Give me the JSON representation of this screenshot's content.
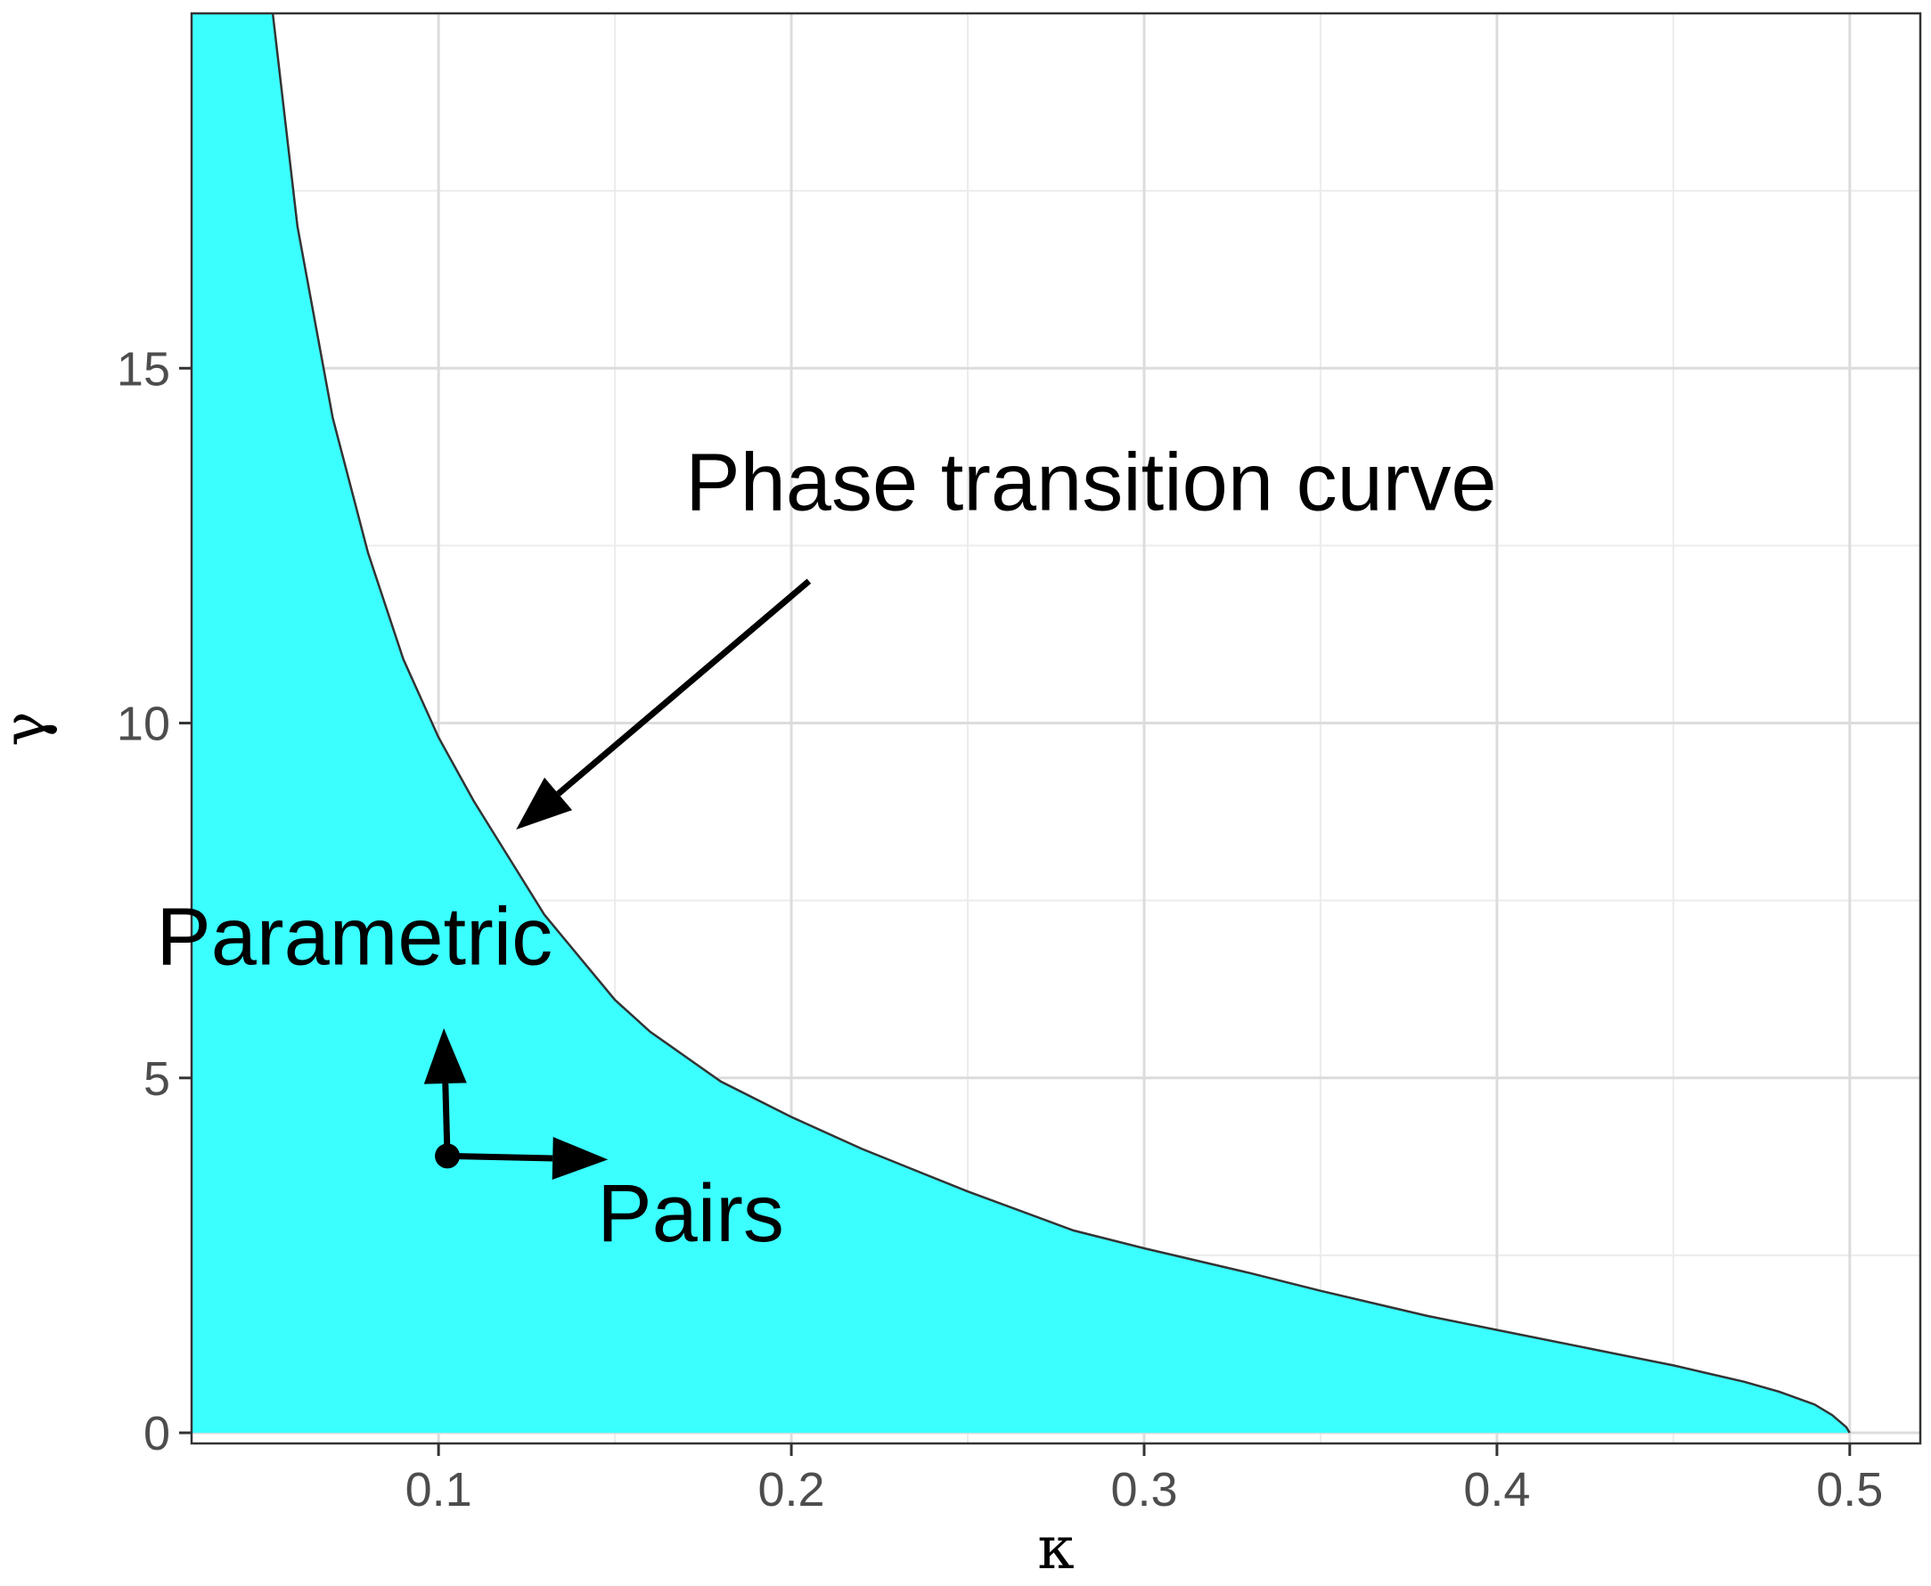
{
  "chart_data": {
    "type": "area",
    "title": "",
    "xlabel": "κ",
    "ylabel": "γ",
    "xlim": [
      0.03,
      0.52
    ],
    "ylim": [
      -0.15,
      20
    ],
    "x_ticks": [
      {
        "value": 0.1,
        "label": "0.1"
      },
      {
        "value": 0.2,
        "label": "0.2"
      },
      {
        "value": 0.3,
        "label": "0.3"
      },
      {
        "value": 0.4,
        "label": "0.4"
      },
      {
        "value": 0.5,
        "label": "0.5"
      }
    ],
    "y_ticks": [
      {
        "value": 0,
        "label": "0"
      },
      {
        "value": 5,
        "label": "5"
      },
      {
        "value": 10,
        "label": "10"
      },
      {
        "value": 15,
        "label": "15"
      }
    ],
    "grid": true,
    "fill_color": "#3bffff",
    "line_color": "#333333",
    "series": [
      {
        "x": [
          0.053,
          0.06,
          0.07,
          0.08,
          0.09,
          0.1,
          0.11,
          0.12,
          0.13,
          0.14,
          0.15,
          0.16,
          0.18,
          0.2,
          0.22,
          0.25,
          0.28,
          0.3,
          0.33,
          0.35,
          0.38,
          0.4,
          0.43,
          0.45,
          0.47,
          0.48,
          0.49,
          0.495,
          0.499,
          0.5
        ],
        "y": [
          20.0,
          17.0,
          14.3,
          12.4,
          10.9,
          9.8,
          8.9,
          8.1,
          7.3,
          6.7,
          6.1,
          5.65,
          4.95,
          4.45,
          4.0,
          3.4,
          2.85,
          2.6,
          2.25,
          2.0,
          1.65,
          1.45,
          1.15,
          0.95,
          0.72,
          0.58,
          0.4,
          0.25,
          0.08,
          0.0
        ]
      }
    ],
    "annotations": [
      {
        "id": "phase",
        "text": "Phase transition curve",
        "x": 0.17,
        "y": 13.0
      },
      {
        "id": "parametric",
        "text": "Parametric",
        "x": 0.02,
        "y": 6.6
      },
      {
        "id": "pairs",
        "text": "Pairs",
        "x": 0.145,
        "y": 2.7
      }
    ],
    "arrows": [
      {
        "from": [
          0.205,
          12.0
        ],
        "to": [
          0.122,
          8.5
        ]
      },
      {
        "from": [
          0.1025,
          3.9
        ],
        "to": [
          0.1015,
          5.7
        ]
      },
      {
        "from": [
          0.1025,
          3.9
        ],
        "to": [
          0.148,
          3.85
        ]
      }
    ],
    "origin_point": [
      0.1025,
      3.9
    ]
  }
}
